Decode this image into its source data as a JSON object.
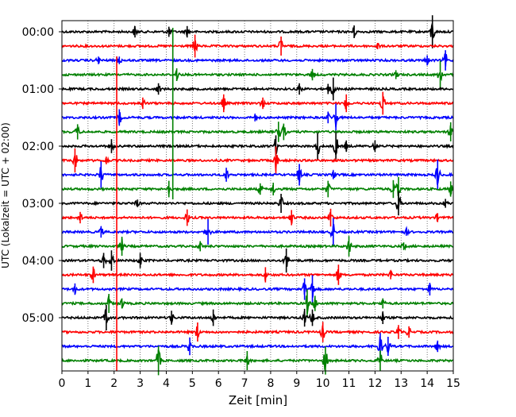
{
  "chart_data": {
    "type": "line",
    "title": "",
    "xlabel": "Zeit  [min]",
    "ylabel": "UTC (Lokalzeit = UTC + 02:00)",
    "xlim": [
      0,
      15
    ],
    "x_ticks": [
      "0",
      "1",
      "2",
      "3",
      "4",
      "5",
      "6",
      "7",
      "8",
      "9",
      "10",
      "11",
      "12",
      "13",
      "14",
      "15"
    ],
    "y_ticks": [
      "00:00",
      "01:00",
      "02:00",
      "03:00",
      "04:00",
      "05:00"
    ],
    "trace_colors": [
      "#000000",
      "#ff0000",
      "#0000ff",
      "#008000"
    ],
    "grid": "vertical-dotted",
    "rows": [
      {
        "start": "00:00",
        "color": "#000000",
        "events": [
          [
            2.8,
            0.9
          ],
          [
            4.1,
            0.8
          ],
          [
            4.8,
            0.9
          ],
          [
            11.2,
            1.0
          ],
          [
            14.2,
            2.6
          ]
        ]
      },
      {
        "start": "00:15",
        "color": "#ff0000",
        "events": [
          [
            5.1,
            1.8
          ],
          [
            8.4,
            1.5
          ],
          [
            12.1,
            0.5
          ]
        ]
      },
      {
        "start": "00:30",
        "color": "#0000ff",
        "events": [
          [
            1.4,
            0.6
          ],
          [
            2.2,
            0.6
          ],
          [
            14.0,
            0.8
          ],
          [
            14.7,
            1.6
          ]
        ]
      },
      {
        "start": "00:45",
        "color": "#008000",
        "events": [
          [
            4.4,
            1.0
          ],
          [
            9.6,
            0.9
          ],
          [
            12.8,
            0.7
          ],
          [
            14.5,
            2.2
          ]
        ]
      },
      {
        "start": "01:00",
        "color": "#000000",
        "events": [
          [
            3.7,
            0.9
          ],
          [
            9.1,
            0.9
          ],
          [
            10.2,
            0.8
          ],
          [
            10.4,
            1.8
          ]
        ]
      },
      {
        "start": "01:15",
        "color": "#ff0000",
        "events": [
          [
            3.1,
            0.9
          ],
          [
            6.2,
            1.4
          ],
          [
            7.7,
            0.9
          ],
          [
            10.9,
            1.4
          ],
          [
            12.3,
            1.8
          ]
        ]
      },
      {
        "start": "01:30",
        "color": "#0000ff",
        "events": [
          [
            2.2,
            1.3
          ],
          [
            7.4,
            0.6
          ],
          [
            10.2,
            0.9
          ],
          [
            10.5,
            2.2
          ]
        ]
      },
      {
        "start": "01:45",
        "color": "#008000",
        "events": [
          [
            0.6,
            1.2
          ],
          [
            8.3,
            1.6
          ],
          [
            8.5,
            1.3
          ],
          [
            14.9,
            1.5
          ]
        ]
      },
      {
        "start": "02:00",
        "color": "#000000",
        "events": [
          [
            1.9,
            1.1
          ],
          [
            8.2,
            1.7
          ],
          [
            9.8,
            2.1
          ],
          [
            10.5,
            2.2
          ],
          [
            10.9,
            0.9
          ],
          [
            12.0,
            0.9
          ]
        ]
      },
      {
        "start": "02:15",
        "color": "#ff0000",
        "events": [
          [
            0.5,
            1.9
          ],
          [
            1.7,
            0.6
          ],
          [
            8.2,
            2.2
          ]
        ]
      },
      {
        "start": "02:30",
        "color": "#0000ff",
        "events": [
          [
            1.5,
            2.1
          ],
          [
            6.3,
            1.1
          ],
          [
            9.1,
            1.7
          ],
          [
            10.4,
            0.7
          ],
          [
            14.4,
            2.4
          ]
        ]
      },
      {
        "start": "02:45",
        "color": "#008000",
        "events": [
          [
            4.1,
            1.3
          ],
          [
            7.6,
            0.9
          ],
          [
            8.1,
            1.0
          ],
          [
            10.2,
            1.3
          ],
          [
            12.7,
            1.4
          ],
          [
            12.9,
            1.9
          ],
          [
            14.9,
            1.2
          ]
        ]
      },
      {
        "start": "03:00",
        "color": "#000000",
        "events": [
          [
            2.9,
            0.6
          ],
          [
            8.4,
            1.5
          ],
          [
            12.9,
            1.9
          ],
          [
            14.7,
            0.7
          ]
        ]
      },
      {
        "start": "03:15",
        "color": "#ff0000",
        "events": [
          [
            0.7,
            0.9
          ],
          [
            4.8,
            1.3
          ],
          [
            8.8,
            1.2
          ],
          [
            10.3,
            1.4
          ],
          [
            14.4,
            0.7
          ]
        ]
      },
      {
        "start": "03:30",
        "color": "#0000ff",
        "events": [
          [
            1.5,
            0.9
          ],
          [
            5.6,
            2.0
          ],
          [
            10.4,
            2.2
          ],
          [
            13.2,
            0.6
          ]
        ]
      },
      {
        "start": "03:45",
        "color": "#008000",
        "events": [
          [
            2.3,
            1.5
          ],
          [
            5.3,
            0.8
          ],
          [
            11.0,
            1.6
          ],
          [
            13.1,
            0.6
          ]
        ]
      },
      {
        "start": "04:00",
        "color": "#000000",
        "events": [
          [
            1.6,
            1.2
          ],
          [
            1.9,
            1.6
          ],
          [
            3.0,
            1.2
          ],
          [
            8.6,
            1.9
          ]
        ]
      },
      {
        "start": "04:15",
        "color": "#ff0000",
        "events": [
          [
            1.2,
            1.3
          ],
          [
            7.8,
            1.2
          ],
          [
            10.6,
            1.6
          ],
          [
            12.6,
            0.7
          ]
        ]
      },
      {
        "start": "04:30",
        "color": "#0000ff",
        "events": [
          [
            0.5,
            0.9
          ],
          [
            9.3,
            1.7
          ],
          [
            9.6,
            2.2
          ],
          [
            14.1,
            1.0
          ]
        ]
      },
      {
        "start": "04:45",
        "color": "#008000",
        "events": [
          [
            1.8,
            1.5
          ],
          [
            2.3,
            0.8
          ],
          [
            9.4,
            2.2
          ],
          [
            9.7,
            1.2
          ],
          [
            12.3,
            0.8
          ]
        ]
      },
      {
        "start": "05:00",
        "color": "#000000",
        "events": [
          [
            1.7,
            2.0
          ],
          [
            4.2,
            1.1
          ],
          [
            5.8,
            1.3
          ],
          [
            9.3,
            1.4
          ],
          [
            9.6,
            1.3
          ],
          [
            12.3,
            1.0
          ]
        ]
      },
      {
        "start": "05:15",
        "color": "#ff0000",
        "events": [
          [
            5.2,
            1.5
          ],
          [
            10.0,
            1.6
          ],
          [
            12.9,
            1.1
          ],
          [
            13.3,
            0.9
          ]
        ]
      },
      {
        "start": "05:30",
        "color": "#0000ff",
        "events": [
          [
            4.9,
            1.4
          ],
          [
            12.2,
            2.1
          ],
          [
            12.5,
            1.5
          ],
          [
            14.4,
            0.9
          ]
        ]
      },
      {
        "start": "05:45",
        "color": "#008000",
        "events": [
          [
            3.7,
            2.3
          ],
          [
            7.1,
            1.5
          ],
          [
            10.1,
            2.2
          ],
          [
            12.2,
            1.6
          ]
        ]
      }
    ],
    "long_spikes": [
      {
        "color": "#ff0000",
        "x": 2.1,
        "from_row": 2,
        "to_row": 23
      },
      {
        "color": "#008000",
        "x": 4.25,
        "from_row": 0,
        "to_row": 11
      }
    ]
  }
}
